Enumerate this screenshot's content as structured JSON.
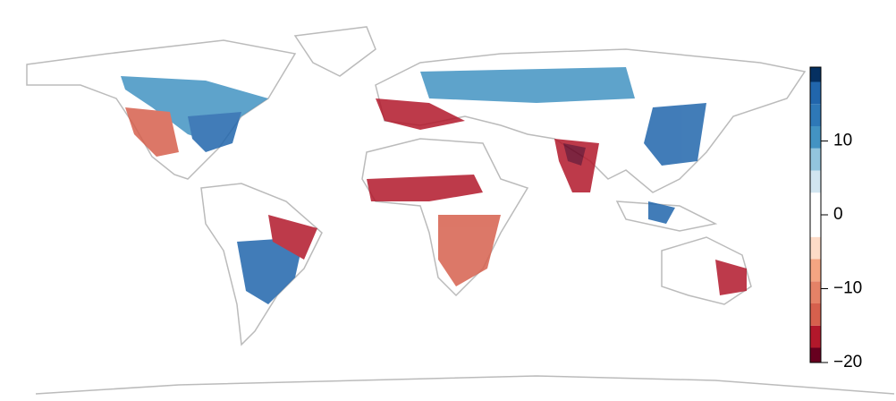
{
  "chart_data": {
    "type": "map",
    "colorbar": {
      "lim": [
        -20,
        20
      ],
      "ticks": [
        {
          "value": -20,
          "label": "−20"
        },
        {
          "value": -10,
          "label": "−10"
        },
        0,
        10
      ],
      "breaks": [
        -20,
        -18,
        -15,
        -12,
        -9,
        -6,
        -3,
        3,
        6,
        9,
        12,
        15,
        18,
        20
      ],
      "colors": [
        "#67001f",
        "#b2182b",
        "#d6604d",
        "#e58267",
        "#f4a582",
        "#fddbc7",
        "#ffffff",
        "#d1e5f0",
        "#92c5de",
        "#4393c3",
        "#2e78b7",
        "#2166ac",
        "#053061"
      ]
    }
  }
}
